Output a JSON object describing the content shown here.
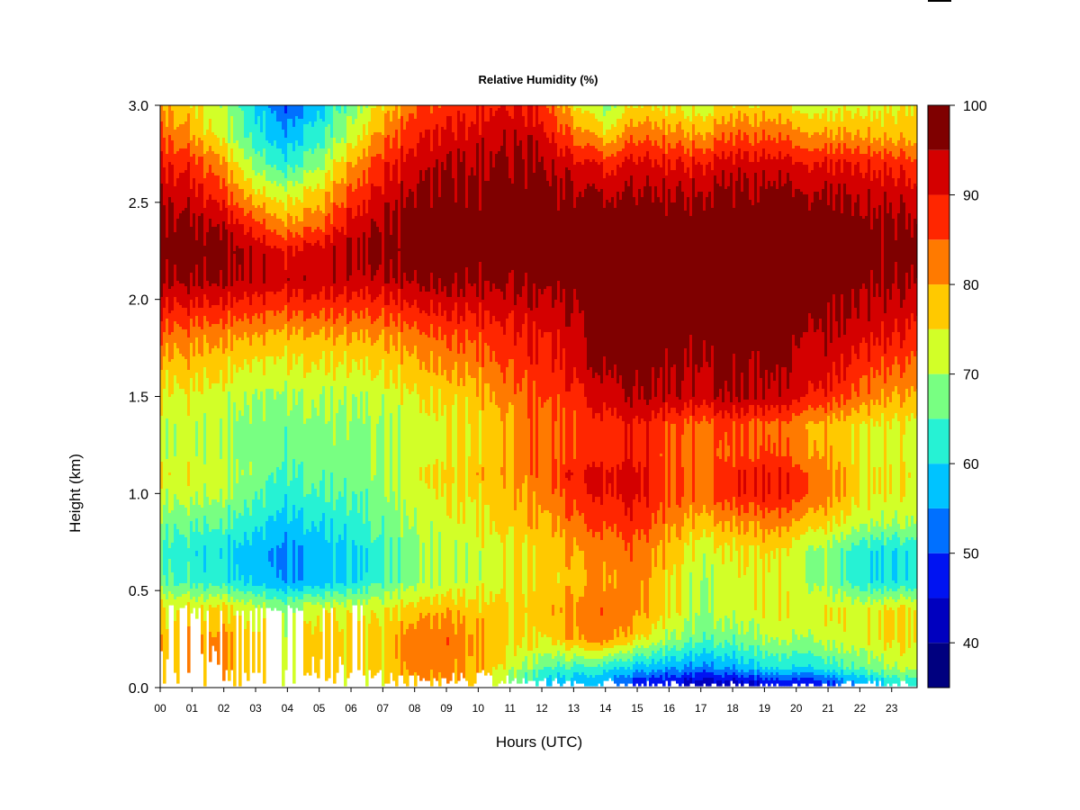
{
  "chart_data": {
    "type": "heatmap",
    "title": "Relative Humidity (%)",
    "xlabel": "Hours (UTC)",
    "ylabel": "Height (km)",
    "x_tick_labels": [
      "00",
      "01",
      "02",
      "03",
      "04",
      "05",
      "06",
      "07",
      "08",
      "09",
      "10",
      "11",
      "12",
      "13",
      "14",
      "15",
      "16",
      "17",
      "18",
      "19",
      "20",
      "21",
      "22",
      "23"
    ],
    "y_tick_labels": [
      "0.0",
      "0.5",
      "1.0",
      "1.5",
      "2.0",
      "2.5",
      "3.0"
    ],
    "xlim": [
      0,
      23.8
    ],
    "ylim": [
      0,
      3.0
    ],
    "grid": false,
    "colorbar": {
      "placement": "right",
      "range": [
        35,
        100
      ],
      "tick_values": [
        40,
        50,
        60,
        70,
        80,
        90,
        100
      ],
      "tick_labels": [
        "40",
        "50",
        "60",
        "70",
        "80",
        "90",
        "100"
      ],
      "levels": [
        {
          "from": 35,
          "to": 40,
          "color": "#00007f"
        },
        {
          "from": 40,
          "to": 45,
          "color": "#0000bf"
        },
        {
          "from": 45,
          "to": 50,
          "color": "#0013f2"
        },
        {
          "from": 50,
          "to": 55,
          "color": "#0070ff"
        },
        {
          "from": 55,
          "to": 60,
          "color": "#00c3ff"
        },
        {
          "from": 60,
          "to": 65,
          "color": "#26f2d4"
        },
        {
          "from": 65,
          "to": 70,
          "color": "#78ff82"
        },
        {
          "from": 70,
          "to": 75,
          "color": "#d2ff28"
        },
        {
          "from": 75,
          "to": 80,
          "color": "#ffc900"
        },
        {
          "from": 80,
          "to": 85,
          "color": "#ff7a00"
        },
        {
          "from": 85,
          "to": 90,
          "color": "#ff2600"
        },
        {
          "from": 90,
          "to": 95,
          "color": "#d40000"
        },
        {
          "from": 95,
          "to": 100,
          "color": "#7f0000"
        }
      ]
    },
    "heights_km": [
      0.0,
      0.1,
      0.25,
      0.4,
      0.55,
      0.7,
      0.85,
      1.0,
      1.1,
      1.2,
      1.35,
      1.5,
      1.65,
      1.8,
      1.95,
      2.1,
      2.25,
      2.4,
      2.55,
      2.7,
      2.85,
      3.0
    ],
    "hours_utc": [
      0,
      1,
      2,
      3,
      4,
      5,
      6,
      7,
      8,
      9,
      10,
      11,
      12,
      13,
      14,
      15,
      16,
      17,
      18,
      19,
      20,
      21,
      22,
      23,
      23.8
    ],
    "values": [
      [
        74,
        77,
        77,
        73,
        70,
        72,
        72,
        72,
        75,
        76,
        74,
        65,
        56,
        54,
        52,
        44,
        42,
        38,
        38,
        42,
        42,
        45,
        52,
        58,
        60
      ],
      [
        77,
        78,
        79,
        76,
        72,
        75,
        75,
        76,
        82,
        82,
        79,
        72,
        66,
        64,
        62,
        58,
        56,
        54,
        55,
        60,
        60,
        62,
        66,
        70,
        72
      ],
      [
        78,
        79,
        80,
        76,
        72,
        76,
        76,
        77,
        83,
        83,
        80,
        76,
        75,
        80,
        82,
        76,
        70,
        66,
        66,
        70,
        70,
        72,
        74,
        76,
        76
      ],
      [
        76,
        76,
        76,
        73,
        70,
        73,
        74,
        74,
        77,
        78,
        77,
        76,
        78,
        82,
        84,
        82,
        76,
        70,
        72,
        74,
        74,
        74,
        74,
        76,
        76
      ],
      [
        66,
        63,
        62,
        58,
        55,
        56,
        60,
        65,
        68,
        70,
        72,
        74,
        76,
        78,
        80,
        82,
        76,
        70,
        72,
        74,
        72,
        68,
        62,
        60,
        62
      ],
      [
        64,
        62,
        60,
        57,
        54,
        56,
        60,
        64,
        68,
        70,
        72,
        74,
        76,
        80,
        82,
        84,
        78,
        72,
        74,
        76,
        72,
        68,
        62,
        60,
        62
      ],
      [
        68,
        66,
        65,
        62,
        58,
        60,
        63,
        67,
        70,
        72,
        74,
        77,
        79,
        84,
        86,
        88,
        82,
        78,
        80,
        82,
        80,
        76,
        72,
        70,
        71
      ],
      [
        72,
        72,
        70,
        66,
        62,
        64,
        66,
        68,
        72,
        74,
        76,
        78,
        82,
        88,
        90,
        92,
        86,
        84,
        88,
        90,
        88,
        82,
        76,
        74,
        74
      ],
      [
        74,
        74,
        72,
        68,
        64,
        66,
        68,
        70,
        73,
        75,
        78,
        80,
        84,
        90,
        91,
        92,
        86,
        84,
        88,
        90,
        88,
        82,
        76,
        75,
        75
      ],
      [
        72,
        72,
        70,
        68,
        66,
        67,
        68,
        70,
        72,
        73,
        76,
        80,
        84,
        86,
        87,
        90,
        85,
        82,
        85,
        86,
        83,
        79,
        75,
        73,
        73
      ],
      [
        72,
        72,
        70,
        68,
        67,
        68,
        69,
        70,
        72,
        73,
        76,
        80,
        84,
        86,
        88,
        90,
        86,
        84,
        86,
        84,
        82,
        78,
        76,
        74,
        74
      ],
      [
        74,
        74,
        72,
        70,
        70,
        70,
        71,
        72,
        74,
        75,
        78,
        82,
        86,
        88,
        92,
        96,
        94,
        93,
        95,
        94,
        92,
        88,
        84,
        80,
        80
      ],
      [
        78,
        78,
        76,
        74,
        74,
        74,
        75,
        76,
        78,
        80,
        82,
        86,
        88,
        92,
        96,
        97,
        96,
        95,
        96,
        96,
        94,
        92,
        88,
        85,
        84
      ],
      [
        84,
        82,
        80,
        80,
        78,
        78,
        80,
        80,
        82,
        84,
        86,
        88,
        90,
        93,
        97,
        98,
        98,
        97,
        98,
        97,
        96,
        94,
        92,
        90,
        88
      ],
      [
        90,
        89,
        88,
        87,
        86,
        86,
        87,
        87,
        89,
        90,
        91,
        92,
        93,
        95,
        98,
        98,
        98,
        98,
        98,
        98,
        98,
        96,
        95,
        93,
        92
      ],
      [
        96,
        96,
        95,
        94,
        93,
        93,
        94,
        94,
        95,
        96,
        96,
        96,
        97,
        98,
        98,
        98,
        98,
        98,
        98,
        98,
        98,
        98,
        97,
        96,
        96
      ],
      [
        98,
        98,
        97,
        94,
        90,
        92,
        96,
        97,
        98,
        98,
        98,
        98,
        98,
        98,
        98,
        98,
        98,
        98,
        98,
        98,
        98,
        98,
        98,
        97,
        97
      ],
      [
        97,
        96,
        93,
        86,
        80,
        82,
        92,
        95,
        97,
        97,
        98,
        98,
        98,
        98,
        98,
        98,
        98,
        98,
        98,
        98,
        98,
        98,
        97,
        96,
        96
      ],
      [
        94,
        92,
        86,
        76,
        72,
        76,
        86,
        92,
        95,
        96,
        96,
        97,
        97,
        96,
        94,
        96,
        95,
        95,
        96,
        96,
        96,
        95,
        94,
        93,
        92
      ],
      [
        90,
        88,
        80,
        68,
        62,
        68,
        80,
        88,
        92,
        94,
        95,
        96,
        96,
        92,
        88,
        92,
        90,
        90,
        92,
        92,
        91,
        90,
        90,
        88,
        87
      ],
      [
        85,
        80,
        72,
        62,
        56,
        62,
        72,
        82,
        88,
        90,
        92,
        94,
        92,
        84,
        76,
        84,
        82,
        80,
        84,
        84,
        82,
        80,
        80,
        78,
        78
      ],
      [
        80,
        76,
        70,
        60,
        50,
        58,
        68,
        76,
        84,
        86,
        88,
        90,
        88,
        76,
        68,
        76,
        74,
        72,
        76,
        76,
        74,
        72,
        74,
        74,
        76
      ]
    ]
  }
}
